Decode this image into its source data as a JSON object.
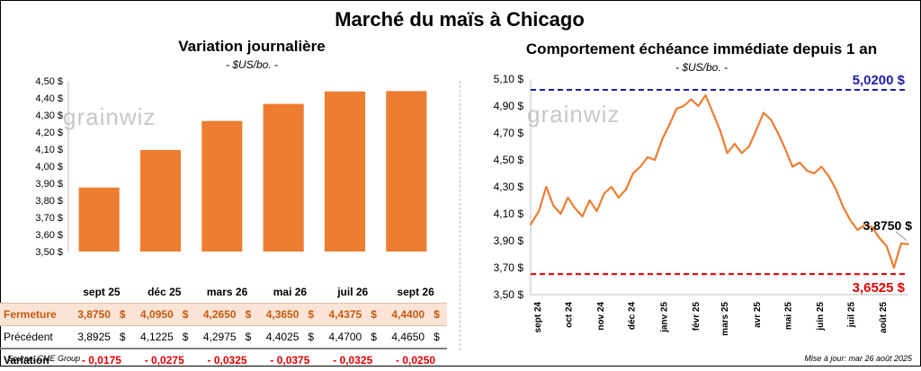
{
  "header": {
    "title": "Marché du maïs à Chicago",
    "watermark": "grainwiz",
    "source": "Source: CME Group",
    "updated": "Mise à jour: mar 26 août 2025"
  },
  "left_chart": {
    "title": "Variation journalière",
    "unit": "- $US/bo. -"
  },
  "right_chart": {
    "title": "Comportement  échéance immédiate depuis 1 an",
    "unit": "- $US/bo. -"
  },
  "table": {
    "columns": [
      "sept 25",
      "déc 25",
      "mars 26",
      "mai 26",
      "juil 26",
      "sept 26"
    ],
    "rows": [
      {
        "label": "Fermeture",
        "values": [
          "3,8750",
          "4,0950",
          "4,2650",
          "4,3650",
          "4,4375",
          "4,4400"
        ],
        "unit": "$"
      },
      {
        "label": "Précédent",
        "values": [
          "3,8925",
          "4,1225",
          "4,2975",
          "4,4025",
          "4,4700",
          "4,4650"
        ],
        "unit": "$"
      },
      {
        "label": "Variation",
        "values": [
          "- 0,0175",
          "- 0,0275",
          "- 0,0325",
          "- 0,0375",
          "- 0,0325",
          "- 0,0250"
        ]
      }
    ]
  },
  "colors": {
    "bar": "#ed7d31",
    "line": "#ed7d31",
    "high_line": "#1f1fa8",
    "low_line": "#e00000",
    "close_row_bg": "#fbe4d5",
    "negative": "#e00000"
  },
  "chart_data": [
    {
      "type": "bar",
      "categories": [
        "sept 25",
        "déc 25",
        "mars 26",
        "mai 26",
        "juil 26",
        "sept 26"
      ],
      "values": [
        3.875,
        4.095,
        4.265,
        4.365,
        4.4375,
        4.44
      ],
      "ylim": [
        3.5,
        4.5
      ],
      "yticks": [
        "3,50 $",
        "3,60 $",
        "3,70 $",
        "3,80 $",
        "3,90 $",
        "4,00 $",
        "4,10 $",
        "4,20 $",
        "4,30 $",
        "4,40 $",
        "4,50 $"
      ],
      "grid": false
    },
    {
      "type": "line",
      "ylim": [
        3.5,
        5.1
      ],
      "yticks": [
        "3,50 $",
        "3,70 $",
        "3,90 $",
        "4,10 $",
        "4,30 $",
        "4,50 $",
        "4,70 $",
        "4,90 $",
        "5,10 $"
      ],
      "xticks": [
        "sept 24",
        "oct 24",
        "nov 24",
        "déc 24",
        "janv 25",
        "févr 25",
        "mars 25",
        "avr 25",
        "mai 25",
        "juin 25",
        "juil 25",
        "août 25"
      ],
      "series": [
        {
          "x": [
            "2024-08-26",
            "2024-09-03",
            "2024-09-10",
            "2024-09-17",
            "2024-09-24",
            "2024-10-01",
            "2024-10-08",
            "2024-10-15",
            "2024-10-22",
            "2024-10-29",
            "2024-11-05",
            "2024-11-12",
            "2024-11-19",
            "2024-11-26",
            "2024-12-03",
            "2024-12-10",
            "2024-12-17",
            "2024-12-24",
            "2024-12-31",
            "2025-01-07",
            "2025-01-14",
            "2025-01-21",
            "2025-01-28",
            "2025-02-04",
            "2025-02-11",
            "2025-02-18",
            "2025-02-25",
            "2025-03-04",
            "2025-03-11",
            "2025-03-18",
            "2025-03-25",
            "2025-04-01",
            "2025-04-08",
            "2025-04-15",
            "2025-04-22",
            "2025-04-29",
            "2025-05-06",
            "2025-05-13",
            "2025-05-20",
            "2025-05-27",
            "2025-06-03",
            "2025-06-10",
            "2025-06-17",
            "2025-06-24",
            "2025-07-01",
            "2025-07-08",
            "2025-07-15",
            "2025-07-22",
            "2025-07-29",
            "2025-08-05",
            "2025-08-12",
            "2025-08-19",
            "2025-08-26"
          ],
          "values": [
            4.02,
            4.12,
            4.3,
            4.16,
            4.1,
            4.22,
            4.14,
            4.08,
            4.2,
            4.12,
            4.25,
            4.3,
            4.22,
            4.28,
            4.4,
            4.45,
            4.52,
            4.5,
            4.65,
            4.76,
            4.88,
            4.9,
            4.95,
            4.9,
            4.98,
            4.85,
            4.72,
            4.55,
            4.62,
            4.55,
            4.6,
            4.72,
            4.85,
            4.8,
            4.7,
            4.58,
            4.45,
            4.48,
            4.42,
            4.4,
            4.45,
            4.38,
            4.28,
            4.15,
            4.05,
            3.98,
            4.02,
            4.0,
            3.92,
            3.86,
            3.7,
            3.88,
            3.875
          ]
        }
      ],
      "annotations": [
        {
          "label": "5,0200 $",
          "value": 5.02,
          "kind": "high"
        },
        {
          "label": "3,6525 $",
          "value": 3.6525,
          "kind": "low"
        },
        {
          "label": "3,8750 $",
          "value": 3.875,
          "kind": "last"
        }
      ]
    }
  ]
}
